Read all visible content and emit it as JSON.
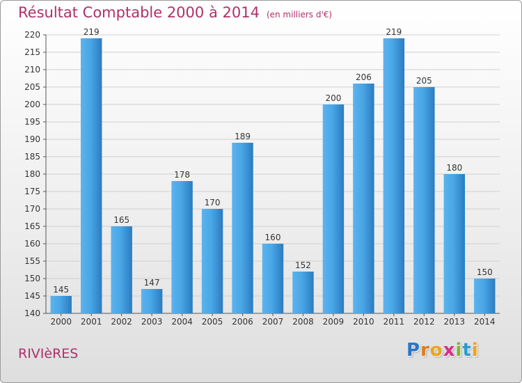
{
  "title": "Résultat Comptable 2000 à 2014",
  "subtitle": "(en milliers d'€)",
  "commune": "RIVIèRES",
  "logo": {
    "letters": [
      "P",
      "r",
      "o",
      "x",
      "i",
      "t",
      "i"
    ],
    "colors": [
      "#2a76c6",
      "#e07b1a",
      "#f0a21a",
      "#d62f8a",
      "#7fb42c",
      "#2a9ad0",
      "#f0a21a"
    ]
  },
  "colors": {
    "bar": "#3d97d8",
    "bar_light": "#5cb3ee",
    "bar_dark": "#2a7cc0",
    "title": "#b0306a"
  },
  "chart_data": {
    "type": "bar",
    "categories": [
      "2000",
      "2001",
      "2002",
      "2003",
      "2004",
      "2005",
      "2006",
      "2007",
      "2008",
      "2009",
      "2010",
      "2011",
      "2012",
      "2013",
      "2014"
    ],
    "values": [
      145,
      219,
      165,
      147,
      178,
      170,
      189,
      160,
      152,
      200,
      206,
      219,
      205,
      180,
      150
    ],
    "ylim": [
      140,
      220
    ],
    "yticks": [
      140,
      145,
      150,
      155,
      160,
      165,
      170,
      175,
      180,
      185,
      190,
      195,
      200,
      205,
      210,
      215,
      220
    ],
    "grid": true,
    "data_labels": true
  }
}
